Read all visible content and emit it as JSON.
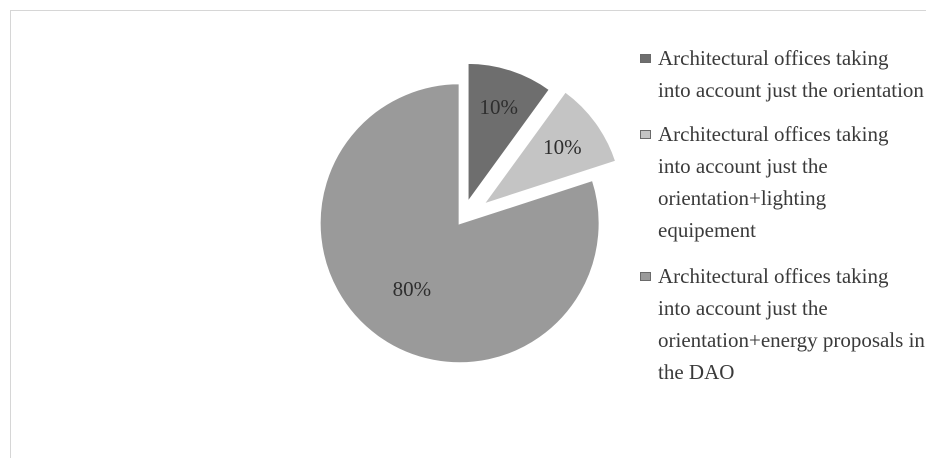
{
  "chart_data": {
    "type": "pie",
    "title": "",
    "exploded": true,
    "legend_position": "right",
    "slices": [
      {
        "name": "Architectural offices taking into account just the orientation",
        "value": 10,
        "label": "10%",
        "color": "#6e6e6e"
      },
      {
        "name": "Architectural offices taking into account just the orientation+lighting equipement",
        "value": 10,
        "label": "10%",
        "color": "#c4c4c4"
      },
      {
        "name": "Architectural offices taking into account just the orientation+energy proposals in the DAO",
        "value": 80,
        "label": "80%",
        "color": "#9a9a9a"
      }
    ]
  }
}
